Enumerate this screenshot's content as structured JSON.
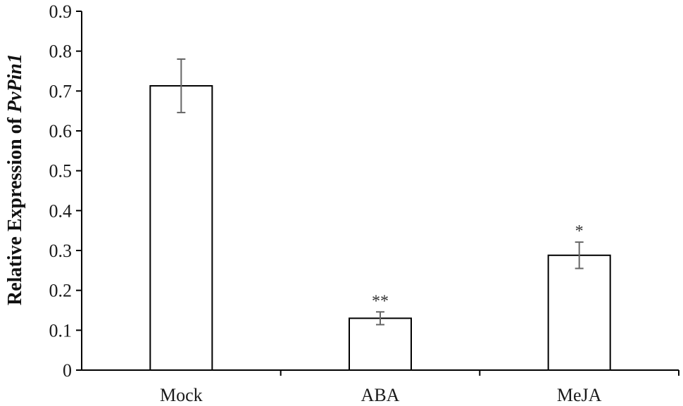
{
  "chart_data": {
    "type": "bar",
    "title": "",
    "xlabel": "",
    "ylabel": {
      "prefix": "Relative Expression of ",
      "gene": "PvPin1"
    },
    "categories": [
      "Mock",
      "ABA",
      "MeJA"
    ],
    "values": [
      0.713,
      0.13,
      0.288
    ],
    "errors": [
      0.067,
      0.016,
      0.033
    ],
    "significance": [
      "",
      "**",
      "*"
    ],
    "ylim": [
      0,
      0.9
    ],
    "yticks": [
      "0",
      "0.1",
      "0.2",
      "0.3",
      "0.4",
      "0.5",
      "0.6",
      "0.7",
      "0.8",
      "0.9"
    ],
    "grid": false,
    "legend": "none",
    "colors": {
      "bar_fill": "#ffffff",
      "bar_stroke": "#000000",
      "error_bar": "#666666",
      "axis": "#000000"
    }
  }
}
